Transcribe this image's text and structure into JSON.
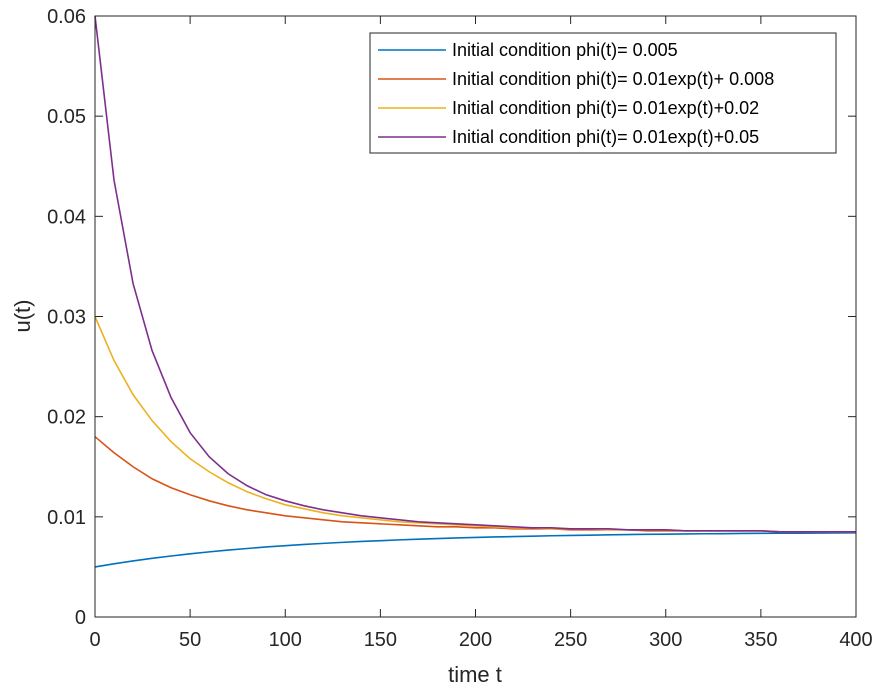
{
  "chart_data": {
    "type": "line",
    "xlabel": "time t",
    "ylabel": "u(t)",
    "xlim": [
      0,
      400
    ],
    "ylim": [
      0,
      0.06
    ],
    "xticks": [
      "0",
      "50",
      "100",
      "150",
      "200",
      "250",
      "300",
      "350",
      "400"
    ],
    "yticks": [
      "0",
      "0.01",
      "0.02",
      "0.03",
      "0.04",
      "0.05",
      "0.06"
    ],
    "grid": false,
    "legend_position": "top-right",
    "x": [
      0,
      10,
      20,
      30,
      40,
      50,
      60,
      70,
      80,
      90,
      100,
      110,
      120,
      130,
      140,
      150,
      160,
      170,
      180,
      190,
      200,
      210,
      220,
      230,
      240,
      250,
      260,
      270,
      280,
      290,
      300,
      310,
      320,
      330,
      340,
      350,
      360,
      370,
      380,
      390,
      400
    ],
    "series": [
      {
        "name": "Initial condition phi(t)= 0.005",
        "color": "#0072BD",
        "values": [
          0.005,
          0.00531,
          0.0056,
          0.00586,
          0.00609,
          0.00631,
          0.0065,
          0.00668,
          0.00684,
          0.00699,
          0.00712,
          0.00724,
          0.00735,
          0.00745,
          0.00754,
          0.00762,
          0.0077,
          0.00777,
          0.00783,
          0.00789,
          0.00794,
          0.00799,
          0.00803,
          0.00807,
          0.00811,
          0.00814,
          0.00817,
          0.0082,
          0.00823,
          0.00825,
          0.00827,
          0.00829,
          0.00831,
          0.00832,
          0.00834,
          0.00835,
          0.00836,
          0.00837,
          0.00838,
          0.00839,
          0.0084
        ]
      },
      {
        "name": "Initial condition phi(t)= 0.01exp(t)+ 0.008",
        "color": "#D95319",
        "values": [
          0.018,
          0.0164,
          0.015,
          0.0138,
          0.0129,
          0.0122,
          0.0116,
          0.0111,
          0.0107,
          0.0104,
          0.0101,
          0.0099,
          0.0097,
          0.0095,
          0.0094,
          0.0093,
          0.0092,
          0.0091,
          0.009,
          0.009,
          0.0089,
          0.0089,
          0.0088,
          0.0088,
          0.0088,
          0.0087,
          0.0087,
          0.0087,
          0.0087,
          0.0086,
          0.0086,
          0.0086,
          0.0086,
          0.0086,
          0.0086,
          0.0086,
          0.0085,
          0.0085,
          0.0085,
          0.0085,
          0.0085
        ]
      },
      {
        "name": "Initial condition phi(t)= 0.01exp(t)+0.02",
        "color": "#EDB120",
        "values": [
          0.03,
          0.0256,
          0.0222,
          0.0196,
          0.0175,
          0.0158,
          0.0145,
          0.0134,
          0.0125,
          0.0118,
          0.0112,
          0.0108,
          0.0104,
          0.0101,
          0.0099,
          0.0097,
          0.0095,
          0.0094,
          0.0093,
          0.0092,
          0.0091,
          0.009,
          0.0089,
          0.0089,
          0.0088,
          0.0088,
          0.0088,
          0.0087,
          0.0087,
          0.0087,
          0.0087,
          0.0086,
          0.0086,
          0.0086,
          0.0086,
          0.0086,
          0.0085,
          0.0085,
          0.0085,
          0.0085,
          0.0085
        ]
      },
      {
        "name": "Initial condition phi(t)= 0.01exp(t)+0.05",
        "color": "#7E2F8E",
        "values": [
          0.06,
          0.0436,
          0.0333,
          0.0266,
          0.0219,
          0.0184,
          0.016,
          0.0143,
          0.0131,
          0.0122,
          0.0116,
          0.0111,
          0.0107,
          0.0104,
          0.0101,
          0.0099,
          0.0097,
          0.0095,
          0.0094,
          0.0093,
          0.0092,
          0.0091,
          0.009,
          0.0089,
          0.0089,
          0.0088,
          0.0088,
          0.0088,
          0.0087,
          0.0087,
          0.0087,
          0.0086,
          0.0086,
          0.0086,
          0.0086,
          0.0086,
          0.0085,
          0.0085,
          0.0085,
          0.0085,
          0.0085
        ]
      }
    ]
  }
}
